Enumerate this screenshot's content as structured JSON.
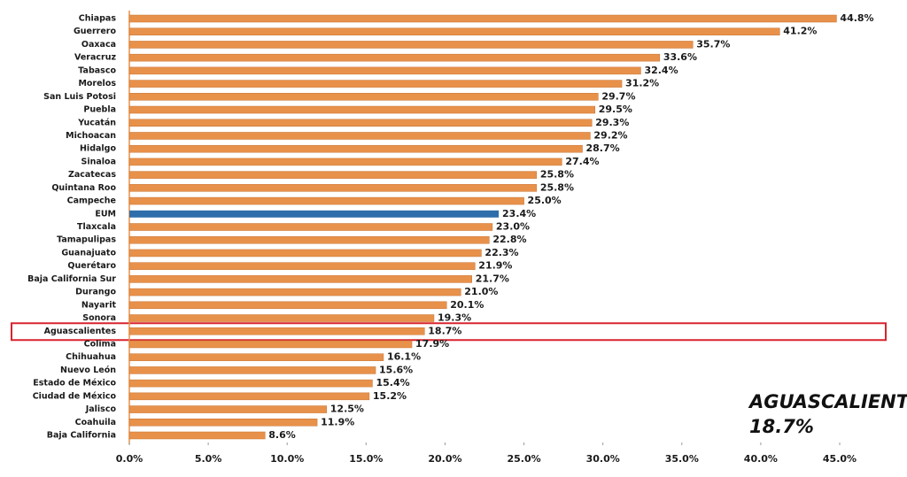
{
  "chart_data": {
    "type": "hbar",
    "categories": [
      "Chiapas",
      "Guerrero",
      "Oaxaca",
      "Veracruz",
      "Tabasco",
      "Morelos",
      "San Luis Potosi",
      "Puebla",
      "Yucatán",
      "Michoacan",
      "Hidalgo",
      "Sinaloa",
      "Zacatecas",
      "Quintana Roo",
      "Campeche",
      "EUM",
      "Tlaxcala",
      "Tamapulipas",
      "Guanajuato",
      "Querétaro",
      "Baja California Sur",
      "Durango",
      "Nayarit",
      "Sonora",
      "Aguascalientes",
      "Colima",
      "Chihuahua",
      "Nuevo León",
      "Estado de México",
      "Ciudad de México",
      "Jalisco",
      "Coahuila",
      "Baja California"
    ],
    "values": [
      44.8,
      41.2,
      35.7,
      33.6,
      32.4,
      31.2,
      29.7,
      29.5,
      29.3,
      29.2,
      28.7,
      27.4,
      25.8,
      25.8,
      25.0,
      23.4,
      23.0,
      22.8,
      22.3,
      21.9,
      21.7,
      21.0,
      20.1,
      19.3,
      18.7,
      17.9,
      16.1,
      15.6,
      15.4,
      15.2,
      12.5,
      11.9,
      8.6
    ],
    "value_labels": [
      "44.8%",
      "41.2%",
      "35.7%",
      "33.6%",
      "32.4%",
      "31.2%",
      "29.7%",
      "29.5%",
      "29.3%",
      "29.2%",
      "28.7%",
      "27.4%",
      "25.8%",
      "25.8%",
      "25.0%",
      "23.4%",
      "23.0%",
      "22.8%",
      "22.3%",
      "21.9%",
      "21.7%",
      "21.0%",
      "20.1%",
      "19.3%",
      "18.7%",
      "17.9%",
      "16.1%",
      "15.6%",
      "15.4%",
      "15.2%",
      "12.5%",
      "11.9%",
      "8.6%"
    ],
    "colors": [
      "#e8914b",
      "#e8914b",
      "#e8914b",
      "#e8914b",
      "#e8914b",
      "#e8914b",
      "#e8914b",
      "#e8914b",
      "#e8914b",
      "#e8914b",
      "#e8914b",
      "#e8914b",
      "#e8914b",
      "#e8914b",
      "#e8914b",
      "#2e6eab",
      "#e8914b",
      "#e8914b",
      "#e8914b",
      "#e8914b",
      "#e8914b",
      "#e8914b",
      "#e8914b",
      "#e8914b",
      "#e8914b",
      "#e8914b",
      "#e8914b",
      "#e8914b",
      "#e8914b",
      "#e8914b",
      "#e8914b",
      "#e8914b",
      "#e8914b"
    ],
    "xlim": [
      0,
      45
    ],
    "xticks": [
      {
        "value": 0,
        "label": "0.0%"
      },
      {
        "value": 5,
        "label": "5.0%"
      },
      {
        "value": 10,
        "label": "10.0%"
      },
      {
        "value": 15,
        "label": "15.0%"
      },
      {
        "value": 20,
        "label": "20.0%"
      },
      {
        "value": 25,
        "label": "25.0%"
      },
      {
        "value": 30,
        "label": "30.0%"
      },
      {
        "value": 35,
        "label": "35.0%"
      },
      {
        "value": 40,
        "label": "40.0%"
      },
      {
        "value": 45,
        "label": "45.0%"
      }
    ],
    "grid": false,
    "highlight_color": "#d9232e",
    "annotation": {
      "title": "AGUASCALIENTES",
      "value": "18.7%"
    }
  }
}
